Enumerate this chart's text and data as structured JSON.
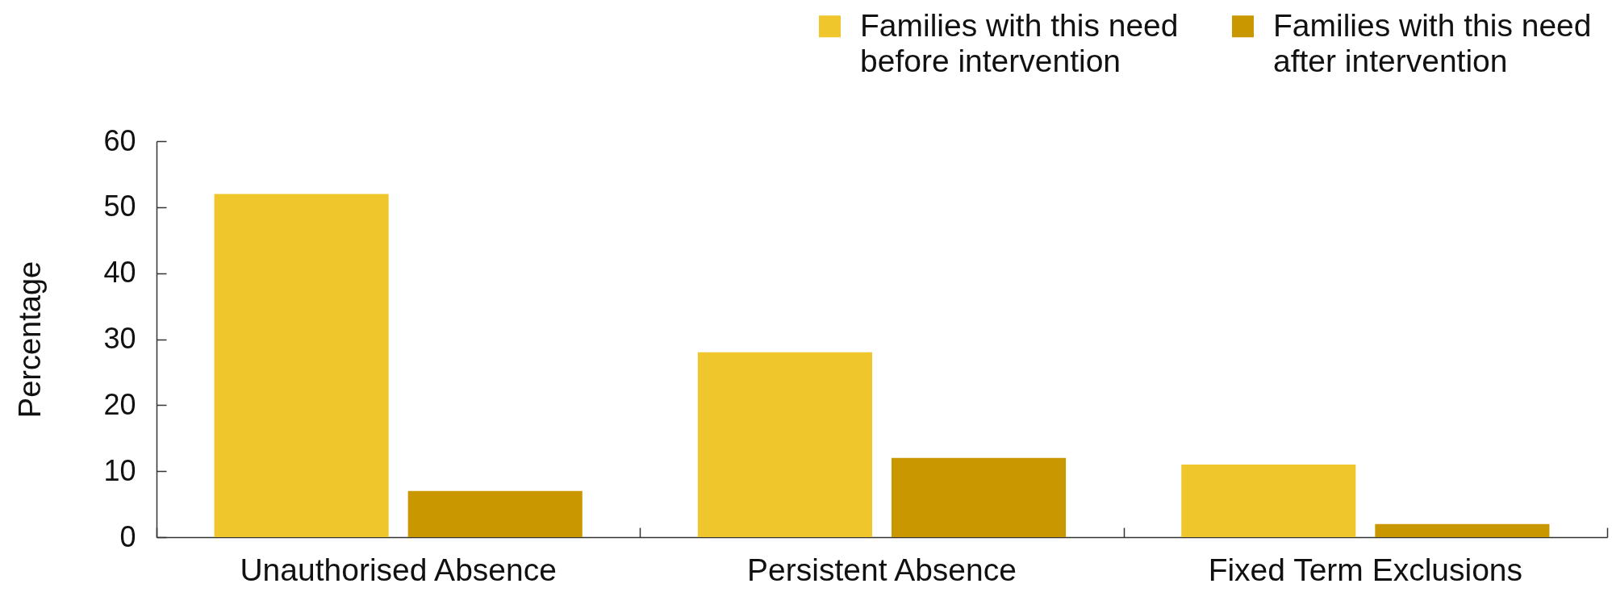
{
  "chart_data": {
    "type": "bar",
    "ylabel": "Percentage",
    "categories": [
      "Unauthorised Absence",
      "Persistent Absence",
      "Fixed Term Exclusions"
    ],
    "series": [
      {
        "name": "Families with this need before intervention",
        "color": "#efc72c",
        "values": [
          52,
          28,
          11
        ]
      },
      {
        "name": "Families with this need after intervention",
        "color": "#c99700",
        "values": [
          7,
          12,
          2
        ]
      }
    ],
    "ylim": [
      0,
      60
    ],
    "yticks": [
      0,
      10,
      20,
      30,
      40,
      50,
      60
    ],
    "legend": "top right"
  }
}
